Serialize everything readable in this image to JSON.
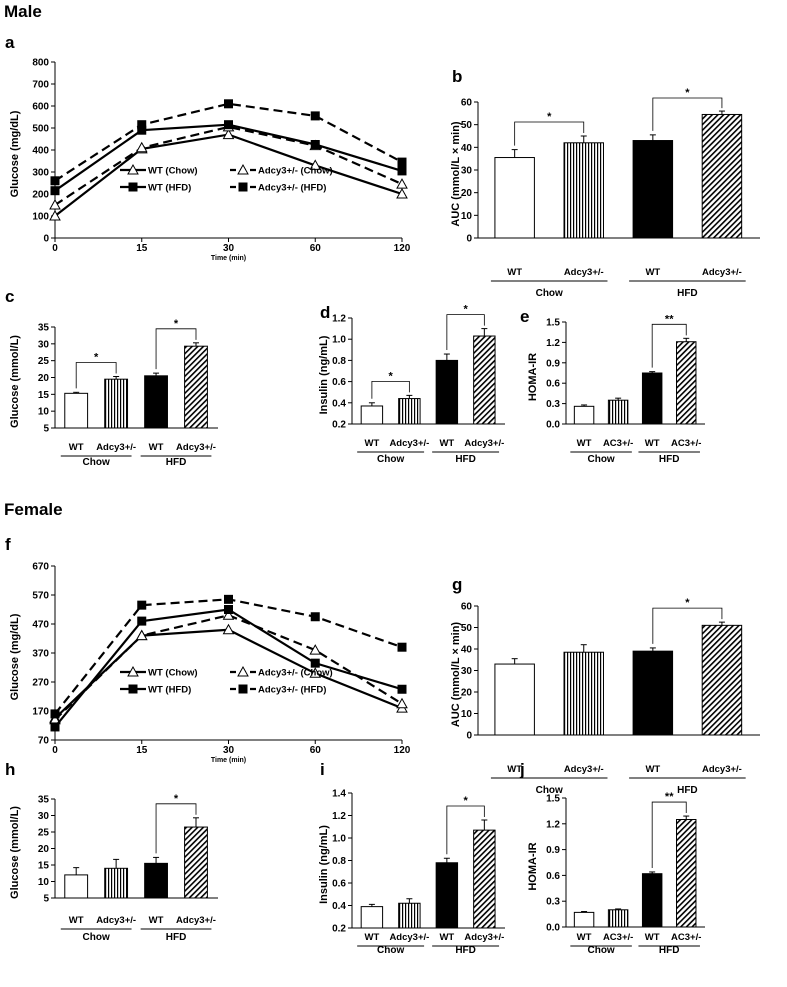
{
  "sections": {
    "male": "Male",
    "female": "Female"
  },
  "colors": {
    "ink": "#000000",
    "bg": "#ffffff"
  },
  "chart_data": [
    {
      "id": "a",
      "type": "line",
      "panel_label": "a",
      "ylabel": "Glucose (mg/dL)",
      "xlabel": "Time (min)",
      "categories": [
        "0",
        "15",
        "30",
        "60",
        "120"
      ],
      "ylim": [
        0,
        800
      ],
      "yticks": [
        0,
        100,
        200,
        300,
        400,
        500,
        600,
        700,
        800
      ],
      "series": [
        {
          "name": "WT (Chow)",
          "marker": "triangle",
          "dash": false,
          "values": [
            100,
            405,
            470,
            330,
            200
          ]
        },
        {
          "name": "Adcy3+/- (Chow)",
          "marker": "triangle",
          "dash": true,
          "values": [
            150,
            410,
            505,
            420,
            245
          ]
        },
        {
          "name": "WT (HFD)",
          "marker": "square",
          "dash": false,
          "values": [
            215,
            490,
            515,
            425,
            305
          ]
        },
        {
          "name": "Adcy3+/- (HFD)",
          "marker": "square",
          "dash": true,
          "values": [
            260,
            515,
            610,
            555,
            345
          ]
        }
      ]
    },
    {
      "id": "b",
      "type": "bar",
      "panel_label": "b",
      "ylabel": "AUC (mmol/L × min)",
      "ylim": [
        0,
        60
      ],
      "yticks": [
        0,
        10,
        20,
        30,
        40,
        50,
        60
      ],
      "categories": [
        "WT",
        "Adcy3+/-",
        "WT",
        "Adcy3+/-"
      ],
      "groups": [
        "Chow",
        "HFD"
      ],
      "values": [
        35.5,
        42,
        43,
        54.5
      ],
      "errors": [
        3.5,
        3,
        2.5,
        1.5
      ],
      "significance": [
        {
          "pair": [
            0,
            1
          ],
          "label": "*"
        },
        {
          "pair": [
            2,
            3
          ],
          "label": "*"
        }
      ]
    },
    {
      "id": "c",
      "type": "bar",
      "panel_label": "c",
      "ylabel": "Glucose (mmol/L)",
      "ylim": [
        5,
        35
      ],
      "yticks": [
        5,
        10,
        15,
        20,
        25,
        30,
        35
      ],
      "categories": [
        "WT",
        "Adcy3+/-",
        "WT",
        "Adcy3+/-"
      ],
      "groups": [
        "Chow",
        "HFD"
      ],
      "values": [
        15.3,
        19.5,
        20.5,
        29.3
      ],
      "errors": [
        0.3,
        0.8,
        0.8,
        1
      ],
      "significance": [
        {
          "pair": [
            0,
            1
          ],
          "label": "*"
        },
        {
          "pair": [
            2,
            3
          ],
          "label": "*"
        }
      ]
    },
    {
      "id": "d",
      "type": "bar",
      "panel_label": "d",
      "ylabel": "Insulin (ng/mL)",
      "ylim": [
        0.2,
        1.2
      ],
      "yticks": [
        0.2,
        0.4,
        0.6,
        0.8,
        1.0,
        1.2
      ],
      "categories": [
        "WT",
        "Adcy3+/-",
        "WT",
        "Adcy3+/-"
      ],
      "groups": [
        "Chow",
        "HFD"
      ],
      "values": [
        0.37,
        0.44,
        0.8,
        1.03
      ],
      "errors": [
        0.03,
        0.03,
        0.06,
        0.07
      ],
      "significance": [
        {
          "pair": [
            0,
            1
          ],
          "label": "*"
        },
        {
          "pair": [
            2,
            3
          ],
          "label": "*"
        }
      ]
    },
    {
      "id": "e",
      "type": "bar",
      "panel_label": "e",
      "ylabel": "HOMA-IR",
      "ylim": [
        0,
        1.5
      ],
      "yticks": [
        0,
        0.3,
        0.6,
        0.9,
        1.2,
        1.5
      ],
      "categories": [
        "WT",
        "AC3+/-",
        "WT",
        "AC3+/-"
      ],
      "groups": [
        "Chow",
        "HFD"
      ],
      "values": [
        0.26,
        0.35,
        0.75,
        1.21
      ],
      "errors": [
        0.02,
        0.03,
        0.02,
        0.05
      ],
      "significance": [
        {
          "pair": [
            2,
            3
          ],
          "label": "**"
        }
      ]
    },
    {
      "id": "f",
      "type": "line",
      "panel_label": "f",
      "ylabel": "Glucose (mg/dL)",
      "xlabel": "Time (min)",
      "categories": [
        "0",
        "15",
        "30",
        "60",
        "120"
      ],
      "ylim": [
        70,
        670
      ],
      "yticks": [
        70,
        170,
        270,
        370,
        470,
        570,
        670
      ],
      "series": [
        {
          "name": "WT (Chow)",
          "marker": "triangle",
          "dash": false,
          "values": [
            145,
            430,
            450,
            300,
            180
          ]
        },
        {
          "name": "Adcy3+/- (Chow)",
          "marker": "triangle",
          "dash": true,
          "values": [
            140,
            430,
            500,
            380,
            195
          ]
        },
        {
          "name": "WT (HFD)",
          "marker": "square",
          "dash": false,
          "values": [
            115,
            480,
            520,
            335,
            245
          ]
        },
        {
          "name": "Adcy3+/- (HFD)",
          "marker": "square",
          "dash": true,
          "values": [
            160,
            535,
            555,
            495,
            390
          ]
        }
      ]
    },
    {
      "id": "g",
      "type": "bar",
      "panel_label": "g",
      "ylabel": "AUC (mmol/L × min)",
      "ylim": [
        0,
        60
      ],
      "yticks": [
        0,
        10,
        20,
        30,
        40,
        50,
        60
      ],
      "categories": [
        "WT",
        "Adcy3+/-",
        "WT",
        "Adcy3+/-"
      ],
      "groups": [
        "Chow",
        "HFD"
      ],
      "values": [
        33,
        38.5,
        39,
        51
      ],
      "errors": [
        2.5,
        3.5,
        1.5,
        1.5
      ],
      "significance": [
        {
          "pair": [
            2,
            3
          ],
          "label": "*"
        }
      ]
    },
    {
      "id": "h",
      "type": "bar",
      "panel_label": "h",
      "ylabel": "Glucose (mmol/L)",
      "ylim": [
        5,
        35
      ],
      "yticks": [
        5,
        10,
        15,
        20,
        25,
        30,
        35
      ],
      "categories": [
        "WT",
        "Adcy3+/-",
        "WT",
        "Adcy3+/-"
      ],
      "groups": [
        "Chow",
        "HFD"
      ],
      "values": [
        12,
        14,
        15.5,
        26.5
      ],
      "errors": [
        2.2,
        2.7,
        1.8,
        2.8
      ],
      "significance": [
        {
          "pair": [
            2,
            3
          ],
          "label": "*"
        }
      ]
    },
    {
      "id": "i",
      "type": "bar",
      "panel_label": "i",
      "ylabel": "Insulin (ng/mL)",
      "ylim": [
        0.2,
        1.4
      ],
      "yticks": [
        0.2,
        0.4,
        0.6,
        0.8,
        1.0,
        1.2,
        1.4
      ],
      "categories": [
        "WT",
        "Adcy3+/-",
        "WT",
        "Adcy3+/-"
      ],
      "groups": [
        "Chow",
        "HFD"
      ],
      "values": [
        0.39,
        0.42,
        0.78,
        1.07
      ],
      "errors": [
        0.02,
        0.04,
        0.04,
        0.09
      ],
      "significance": [
        {
          "pair": [
            2,
            3
          ],
          "label": "*"
        }
      ]
    },
    {
      "id": "j",
      "type": "bar",
      "panel_label": "j",
      "ylabel": "HOMA-IR",
      "ylim": [
        0,
        1.5
      ],
      "yticks": [
        0,
        0.3,
        0.6,
        0.9,
        1.2,
        1.5
      ],
      "categories": [
        "WT",
        "AC3+/-",
        "WT",
        "AC3+/-"
      ],
      "groups": [
        "Chow",
        "HFD"
      ],
      "values": [
        0.17,
        0.2,
        0.62,
        1.25
      ],
      "errors": [
        0.01,
        0.01,
        0.02,
        0.04
      ],
      "significance": [
        {
          "pair": [
            2,
            3
          ],
          "label": "**"
        }
      ]
    }
  ]
}
